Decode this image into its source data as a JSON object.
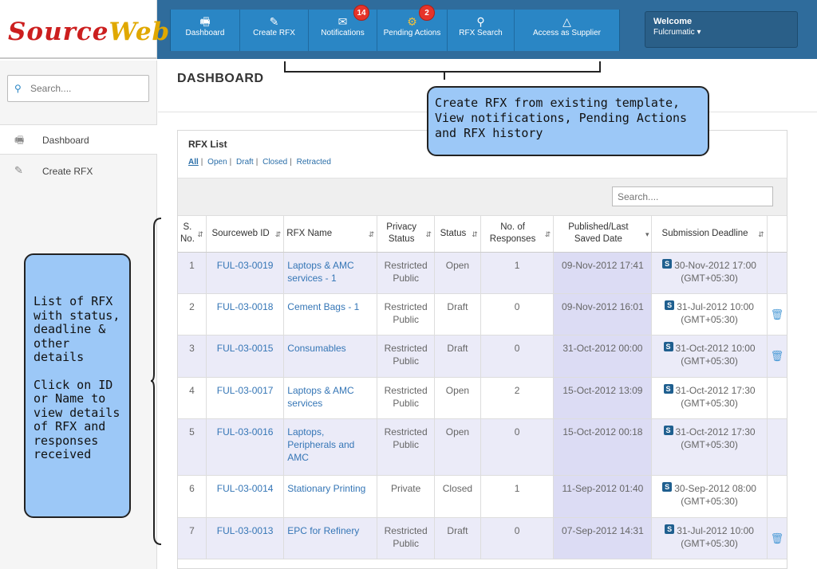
{
  "logo": {
    "source": "Source",
    "web": "Web"
  },
  "nav": [
    {
      "label": "Dashboard",
      "icon": "monitor-icon"
    },
    {
      "label": "Create RFX",
      "icon": "edit-icon"
    },
    {
      "label": "Notifications",
      "icon": "envelope-icon",
      "badge": "14"
    },
    {
      "label": "Pending Actions",
      "icon": "gear-icon",
      "badge": "2"
    },
    {
      "label": "RFX Search",
      "icon": "search-icon"
    },
    {
      "label": "Access as Supplier",
      "icon": "road-icon"
    }
  ],
  "welcome": {
    "title": "Welcome",
    "user": "Fulcrumatic ▾"
  },
  "sidebar": {
    "search_placeholder": "Search....",
    "items": [
      {
        "label": "Dashboard",
        "icon": "monitor-icon"
      },
      {
        "label": "Create RFX",
        "icon": "edit-icon"
      }
    ]
  },
  "page_title": "DASHBOARD",
  "panel": {
    "title": "RFX List",
    "filters": [
      "All",
      "Open",
      "Draft",
      "Closed",
      "Retracted"
    ],
    "active_filter": "All",
    "search_placeholder": "Search...."
  },
  "table": {
    "headers": [
      "S. No.",
      "Sourceweb ID",
      "RFX Name",
      "Privacy Status",
      "Status",
      "No. of Responses",
      "Published/Last Saved Date",
      "Submission Deadline"
    ],
    "rows": [
      {
        "sno": "1",
        "id": "FUL-03-0019",
        "name": "Laptops & AMC services - 1",
        "privacy": "Restricted Public",
        "status": "Open",
        "responses": "1",
        "published": "09-Nov-2012 17:41",
        "deadline": "30-Nov-2012 17:00",
        "tz": "(GMT+05:30)",
        "trash": false
      },
      {
        "sno": "2",
        "id": "FUL-03-0018",
        "name": "Cement Bags - 1",
        "privacy": "Restricted Public",
        "status": "Draft",
        "responses": "0",
        "published": "09-Nov-2012 16:01",
        "deadline": "31-Jul-2012 10:00",
        "tz": "(GMT+05:30)",
        "trash": true
      },
      {
        "sno": "3",
        "id": "FUL-03-0015",
        "name": "Consumables",
        "privacy": "Restricted Public",
        "status": "Draft",
        "responses": "0",
        "published": "31-Oct-2012 00:00",
        "deadline": "31-Oct-2012 10:00",
        "tz": "(GMT+05:30)",
        "trash": true
      },
      {
        "sno": "4",
        "id": "FUL-03-0017",
        "name": "Laptops & AMC services",
        "privacy": "Restricted Public",
        "status": "Open",
        "responses": "2",
        "published": "15-Oct-2012 13:09",
        "deadline": "31-Oct-2012 17:30",
        "tz": "(GMT+05:30)",
        "trash": false
      },
      {
        "sno": "5",
        "id": "FUL-03-0016",
        "name": "Laptops, Peripherals and AMC",
        "privacy": "Restricted Public",
        "status": "Open",
        "responses": "0",
        "published": "15-Oct-2012 00:18",
        "deadline": "31-Oct-2012 17:30",
        "tz": "(GMT+05:30)",
        "trash": false
      },
      {
        "sno": "6",
        "id": "FUL-03-0014",
        "name": "Stationary Printing",
        "privacy": "Private",
        "status": "Closed",
        "responses": "1",
        "published": "11-Sep-2012 01:40",
        "deadline": "30-Sep-2012 08:00",
        "tz": "(GMT+05:30)",
        "trash": false
      },
      {
        "sno": "7",
        "id": "FUL-03-0013",
        "name": "EPC for Refinery",
        "privacy": "Restricted Public",
        "status": "Draft",
        "responses": "0",
        "published": "07-Sep-2012 14:31",
        "deadline": "31-Jul-2012 10:00",
        "tz": "(GMT+05:30)",
        "trash": true
      }
    ]
  },
  "annotations": {
    "top": "Create RFX from existing template, View notifications, Pending Actions and RFX history",
    "left_1": "List of RFX with status, deadline & other details",
    "left_2": "Click on ID or Name to view details of RFX and responses received"
  },
  "colors": {
    "topbar": "#2f6c9c",
    "nav": "#2a86c5",
    "badge": "#e6342a",
    "callout": "#9cc8f7",
    "row_alt": "#ebebf8"
  }
}
